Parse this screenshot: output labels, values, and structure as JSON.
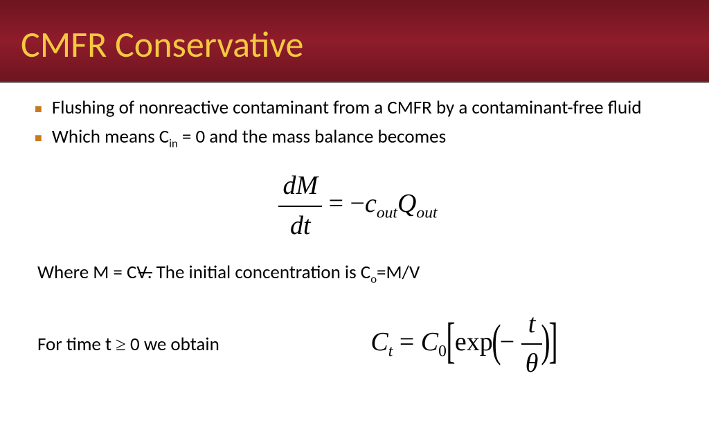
{
  "header": {
    "title": "CMFR Conservative",
    "title_color": "#f5c842",
    "bg_color": "#7d1824"
  },
  "bullets": [
    "Flushing of nonreactive contaminant from a CMFR by a contaminant-free fluid",
    "Which means C<sub>in</sub> = 0 and the mass balance becomes"
  ],
  "eq1": {
    "frac_num": "dM",
    "frac_den": "dt",
    "rhs_pre": " = −",
    "rhs_c": "c",
    "rhs_csub": "out",
    "rhs_Q": "Q",
    "rhs_Qsub": "out"
  },
  "line_where": "Where M = CV. The initial concentration is C<sub>o</sub>=M/V",
  "line_for": "For time t ≥ 0 we obtain",
  "eq2": {
    "lhs": "C",
    "lhs_sub": "t",
    "eq": " = ",
    "c0": "C",
    "c0_sub": "0",
    "exp": "exp",
    "minus": "− ",
    "frac_num": "t",
    "frac_den": "θ"
  },
  "colors": {
    "bullet": "#c87a1e",
    "divider": "#808080",
    "text": "#000000",
    "bg": "#ffffff"
  }
}
